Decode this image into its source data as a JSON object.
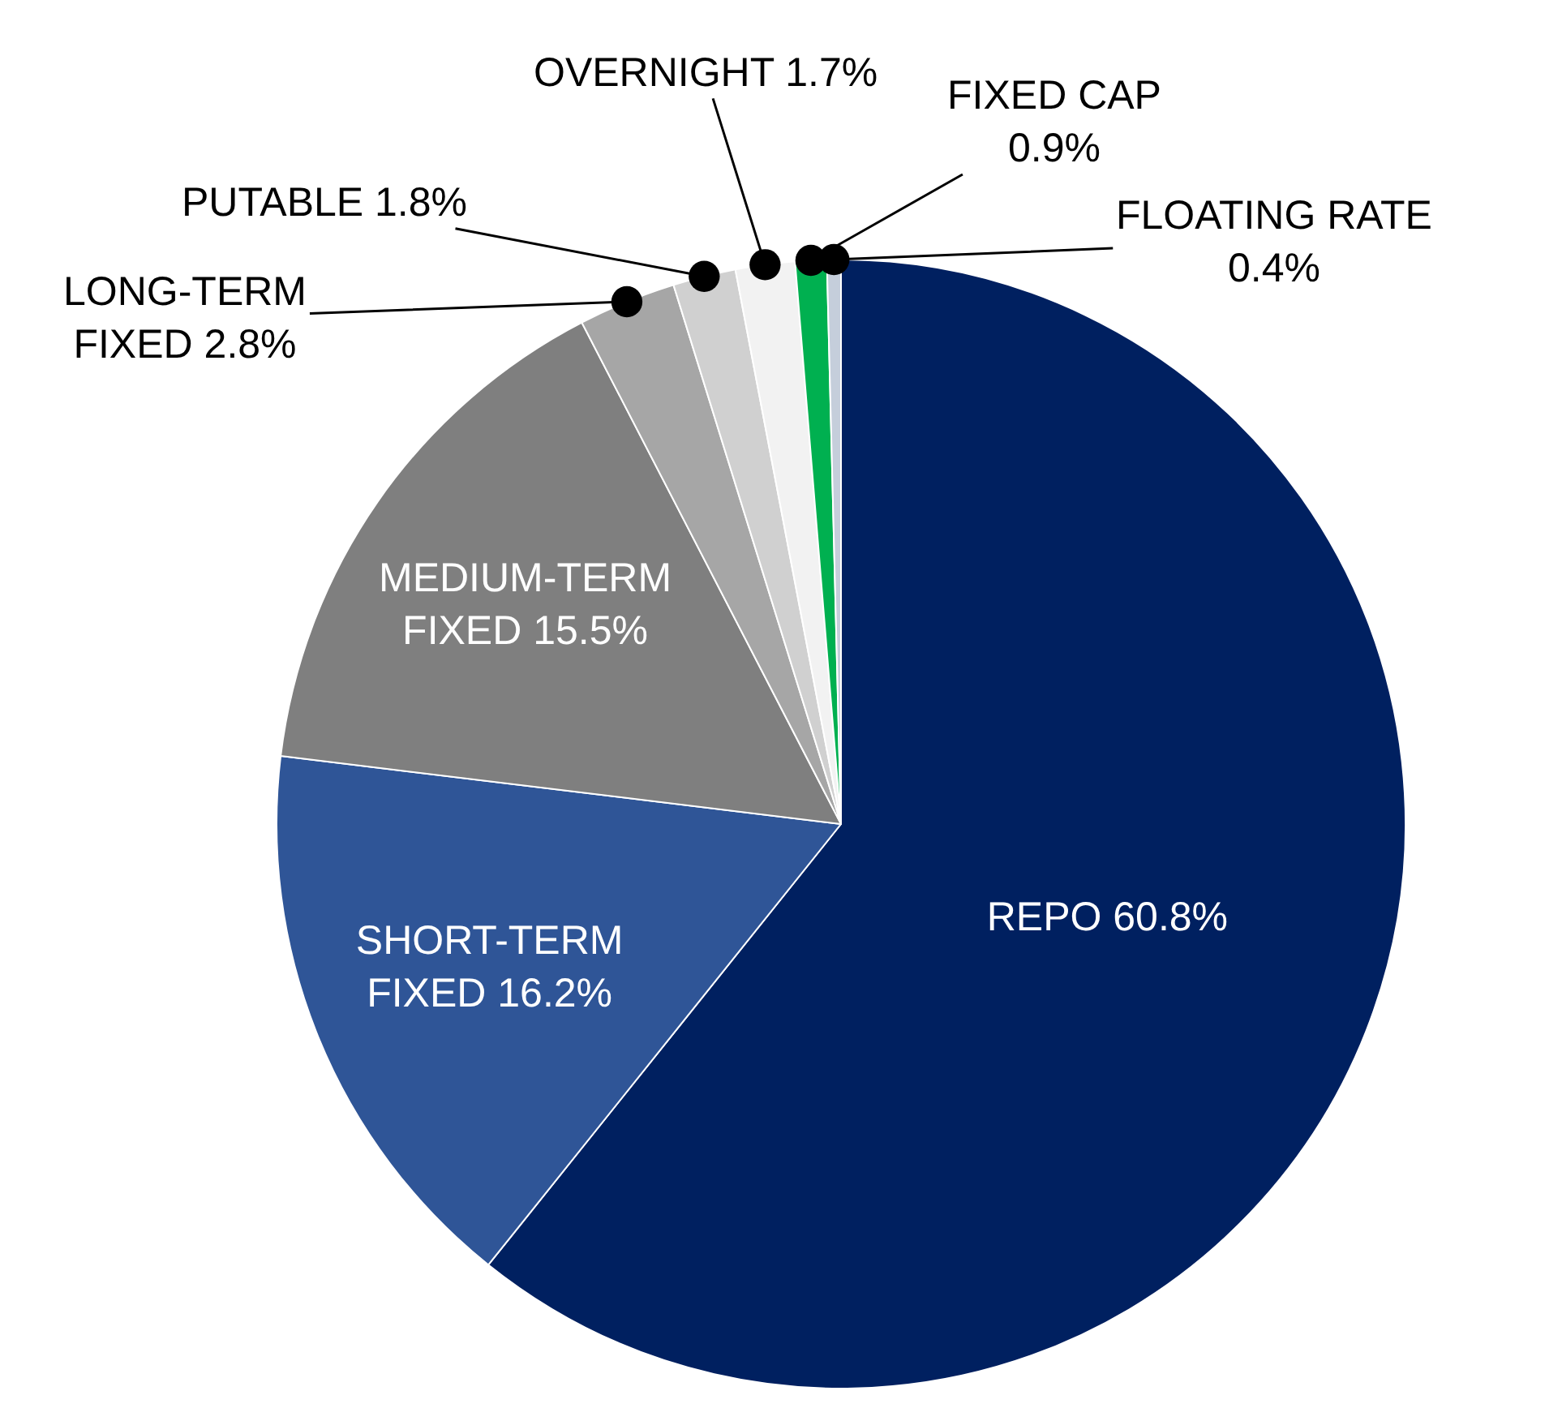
{
  "chart_data": {
    "type": "pie",
    "categories": [
      "REPO",
      "SHORT-TERM FIXED",
      "MEDIUM-TERM FIXED",
      "LONG-TERM FIXED",
      "PUTABLE",
      "OVERNIGHT",
      "FIXED CAP",
      "FLOATING RATE"
    ],
    "values": [
      60.8,
      16.2,
      15.5,
      2.8,
      1.8,
      1.7,
      0.9,
      0.4
    ],
    "value_labels": [
      "60.8%",
      "16.2%",
      "15.5%",
      "2.8%",
      "1.8%",
      "1.7%",
      "0.9%",
      "0.4%"
    ],
    "colors": [
      "#002060",
      "#2f5597",
      "#7f7f7f",
      "#a6a6a6",
      "#d0d0d0",
      "#f2f2f2",
      "#00b050",
      "#c5cedb"
    ]
  }
}
